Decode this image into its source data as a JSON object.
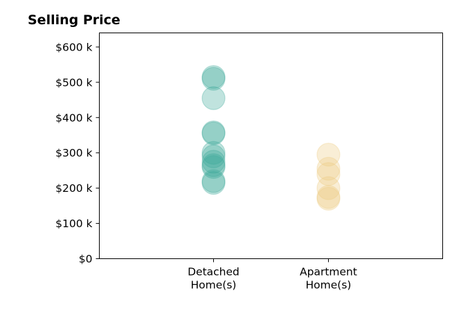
{
  "chart_data": {
    "type": "scatter",
    "title": "Selling Price",
    "xlabel": "",
    "ylabel": "",
    "categories": [
      "Detached\nHome(s)",
      "Apartment\nHome(s)"
    ],
    "ylim": [
      0,
      640000
    ],
    "y_ticks": [
      0,
      100000,
      200000,
      300000,
      400000,
      500000,
      600000
    ],
    "y_tick_labels": [
      "$0",
      "$100 k",
      "$200 k",
      "$300 k",
      "$400 k",
      "$500 k",
      "$600 k"
    ],
    "grid": false,
    "legend": "none",
    "series": [
      {
        "category": "Detached\nHome(s)",
        "color": "#3aa898",
        "values": [
          515000,
          510000,
          455000,
          358000,
          355000,
          300000,
          290000,
          275000,
          265000,
          260000,
          220000,
          215000
        ]
      },
      {
        "category": "Apartment\nHome(s)",
        "color": "#eccb7e",
        "values": [
          295000,
          255000,
          240000,
          200000,
          175000,
          170000
        ]
      }
    ]
  }
}
